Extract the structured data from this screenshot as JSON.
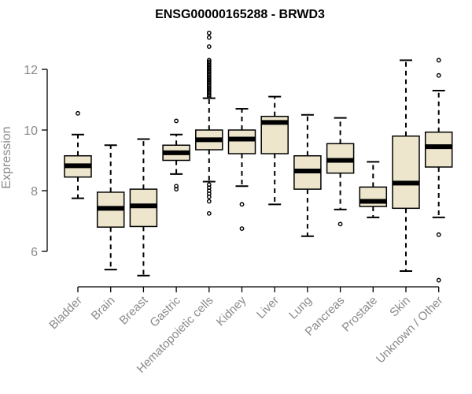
{
  "chart_data": {
    "type": "boxplot",
    "title": "ENSG00000165288 - BRWD3",
    "xlabel": "",
    "ylabel": "Expression",
    "ylim": [
      4.9,
      13.3
    ],
    "yticks": [
      6,
      8,
      10,
      12
    ],
    "box_color": "#ede6cd",
    "categories": [
      "Bladder",
      "Brain",
      "Breast",
      "Gastric",
      "Hematopoietic cells",
      "Kidney",
      "Liver",
      "Lung",
      "Pancreas",
      "Prostate",
      "Skin",
      "Unknown / Other"
    ],
    "series": [
      {
        "name": "Bladder",
        "whisker_low": 7.75,
        "q1": 8.45,
        "median": 8.82,
        "q3": 9.15,
        "whisker_high": 9.85,
        "outliers": [
          10.55
        ]
      },
      {
        "name": "Brain",
        "whisker_low": 5.4,
        "q1": 6.8,
        "median": 7.42,
        "q3": 7.95,
        "whisker_high": 9.5,
        "outliers": []
      },
      {
        "name": "Breast",
        "whisker_low": 5.2,
        "q1": 6.82,
        "median": 7.5,
        "q3": 8.05,
        "whisker_high": 9.7,
        "outliers": []
      },
      {
        "name": "Gastric",
        "whisker_low": 8.55,
        "q1": 9.0,
        "median": 9.25,
        "q3": 9.5,
        "whisker_high": 9.85,
        "outliers": [
          10.3,
          8.15,
          8.05
        ]
      },
      {
        "name": "Hematopoietic cells",
        "whisker_low": 8.3,
        "q1": 9.35,
        "median": 9.68,
        "q3": 10.0,
        "whisker_high": 11.05,
        "outliers": [
          13.2,
          13.05,
          12.75,
          12.3,
          12.25,
          12.2,
          12.15,
          12.1,
          12.05,
          12.0,
          11.95,
          11.9,
          11.85,
          11.8,
          11.75,
          11.7,
          11.65,
          11.6,
          11.55,
          11.5,
          11.45,
          11.4,
          11.35,
          11.3,
          11.25,
          11.2,
          11.15,
          11.1,
          8.2,
          8.1,
          8.0,
          7.9,
          7.8,
          7.65,
          7.25
        ]
      },
      {
        "name": "Kidney",
        "whisker_low": 8.15,
        "q1": 9.22,
        "median": 9.7,
        "q3": 10.0,
        "whisker_high": 10.7,
        "outliers": [
          7.55,
          6.75
        ]
      },
      {
        "name": "Liver",
        "whisker_low": 7.55,
        "q1": 9.22,
        "median": 10.25,
        "q3": 10.45,
        "whisker_high": 11.1,
        "outliers": []
      },
      {
        "name": "Lung",
        "whisker_low": 6.5,
        "q1": 8.05,
        "median": 8.65,
        "q3": 9.15,
        "whisker_high": 10.5,
        "outliers": []
      },
      {
        "name": "Pancreas",
        "whisker_low": 7.38,
        "q1": 8.58,
        "median": 9.0,
        "q3": 9.55,
        "whisker_high": 10.4,
        "outliers": [
          6.9
        ]
      },
      {
        "name": "Prostate",
        "whisker_low": 7.12,
        "q1": 7.48,
        "median": 7.65,
        "q3": 8.12,
        "whisker_high": 8.95,
        "outliers": []
      },
      {
        "name": "Skin",
        "whisker_low": 5.35,
        "q1": 7.42,
        "median": 8.25,
        "q3": 9.8,
        "whisker_high": 12.3,
        "outliers": []
      },
      {
        "name": "Unknown / Other",
        "whisker_low": 7.12,
        "q1": 8.78,
        "median": 9.45,
        "q3": 9.93,
        "whisker_high": 11.3,
        "outliers": [
          12.3,
          11.8,
          6.55,
          5.05
        ]
      }
    ]
  }
}
